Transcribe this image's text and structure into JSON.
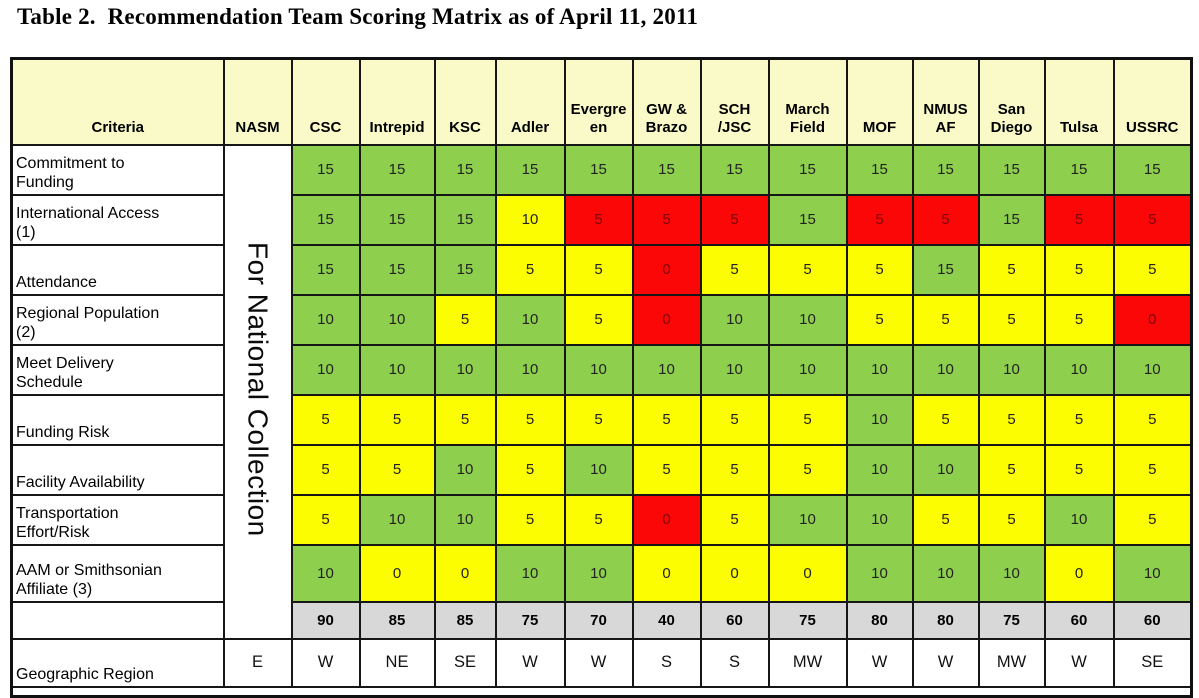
{
  "title": "Table 2.  Recommendation Team Scoring Matrix as of April 11, 2011",
  "colors": {
    "green": "#8ed04e",
    "yellow": "#fdfd02",
    "red": "#fb0707",
    "red_text": "#7c0606",
    "cell_text": "#222222",
    "header_bg": "#fafac8",
    "total_bg": "#d8d8d8"
  },
  "matrix": {
    "criteria_header": "Criteria",
    "columns": [
      "NASM",
      "CSC",
      "Intrepid",
      "KSC",
      "Adler",
      "Evergreen",
      "GW & Brazo",
      "SCH /JSC",
      "March Field",
      "MOF",
      "NMUS AF",
      "San Diego",
      "Tulsa",
      "USSRC"
    ],
    "nasm_note": "For National Collection",
    "rows": [
      {
        "criteria": "Commitment to Funding",
        "scores": [
          15,
          15,
          15,
          15,
          15,
          15,
          15,
          15,
          15,
          15,
          15,
          15,
          15
        ],
        "colors": [
          "g",
          "g",
          "g",
          "g",
          "g",
          "g",
          "g",
          "g",
          "g",
          "g",
          "g",
          "g",
          "g"
        ]
      },
      {
        "criteria": "International Access (1)",
        "scores": [
          15,
          15,
          15,
          10,
          5,
          5,
          5,
          15,
          5,
          5,
          15,
          5,
          5
        ],
        "colors": [
          "g",
          "g",
          "g",
          "y",
          "r",
          "r",
          "r",
          "g",
          "r",
          "r",
          "g",
          "r",
          "r"
        ]
      },
      {
        "criteria": "Attendance",
        "scores": [
          15,
          15,
          15,
          5,
          5,
          0,
          5,
          5,
          5,
          15,
          5,
          5,
          5
        ],
        "colors": [
          "g",
          "g",
          "g",
          "y",
          "y",
          "r",
          "y",
          "y",
          "y",
          "g",
          "y",
          "y",
          "y"
        ]
      },
      {
        "criteria": "Regional Population (2)",
        "scores": [
          10,
          10,
          5,
          10,
          5,
          0,
          10,
          10,
          5,
          5,
          5,
          5,
          0
        ],
        "colors": [
          "g",
          "g",
          "y",
          "g",
          "y",
          "r",
          "g",
          "g",
          "y",
          "y",
          "y",
          "y",
          "r"
        ]
      },
      {
        "criteria": "Meet Delivery Schedule",
        "scores": [
          10,
          10,
          10,
          10,
          10,
          10,
          10,
          10,
          10,
          10,
          10,
          10,
          10
        ],
        "colors": [
          "g",
          "g",
          "g",
          "g",
          "g",
          "g",
          "g",
          "g",
          "g",
          "g",
          "g",
          "g",
          "g"
        ]
      },
      {
        "criteria": "Funding Risk",
        "scores": [
          5,
          5,
          5,
          5,
          5,
          5,
          5,
          5,
          10,
          5,
          5,
          5,
          5
        ],
        "colors": [
          "y",
          "y",
          "y",
          "y",
          "y",
          "y",
          "y",
          "y",
          "g",
          "y",
          "y",
          "y",
          "y"
        ]
      },
      {
        "criteria": "Facility Availability",
        "scores": [
          5,
          5,
          10,
          5,
          10,
          5,
          5,
          5,
          10,
          10,
          5,
          5,
          5
        ],
        "colors": [
          "y",
          "y",
          "g",
          "y",
          "g",
          "y",
          "y",
          "y",
          "g",
          "g",
          "y",
          "y",
          "y"
        ]
      },
      {
        "criteria": "Transportation Effort/Risk",
        "scores": [
          5,
          10,
          10,
          5,
          5,
          0,
          5,
          10,
          10,
          5,
          5,
          10,
          5
        ],
        "colors": [
          "y",
          "g",
          "g",
          "y",
          "y",
          "r",
          "y",
          "g",
          "g",
          "y",
          "y",
          "g",
          "y"
        ]
      },
      {
        "criteria": "AAM or Smithsonian Affiliate (3)",
        "scores": [
          10,
          0,
          0,
          10,
          10,
          0,
          0,
          0,
          10,
          10,
          10,
          0,
          10
        ],
        "colors": [
          "g",
          "y",
          "y",
          "g",
          "g",
          "y",
          "y",
          "y",
          "g",
          "g",
          "g",
          "y",
          "g"
        ]
      }
    ],
    "total_scores": [
      90,
      85,
      85,
      75,
      70,
      40,
      60,
      75,
      80,
      80,
      75,
      60,
      60
    ],
    "geo_label": "Geographic Region",
    "geo_values": [
      "E",
      "W",
      "NE",
      "SE",
      "W",
      "W",
      "S",
      "S",
      "MW",
      "W",
      "W",
      "MW",
      "W",
      "SE"
    ]
  }
}
